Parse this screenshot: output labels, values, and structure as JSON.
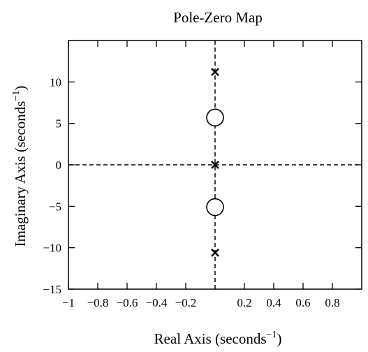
{
  "chart_data": {
    "type": "scatter",
    "title": "Pole-Zero Map",
    "xlabel": {
      "main": "Real Axis (seconds",
      "sup": "−1",
      "close": ")"
    },
    "ylabel": {
      "main": "Imaginary Axis (seconds",
      "sup": "−1",
      "close": ")"
    },
    "xlim": [
      -1,
      1
    ],
    "ylim": [
      -15,
      15
    ],
    "xticks": [
      {
        "value": -1,
        "label": "−1"
      },
      {
        "value": -0.8,
        "label": "−0.8"
      },
      {
        "value": -0.6,
        "label": "−0.6"
      },
      {
        "value": -0.4,
        "label": "−0.4"
      },
      {
        "value": -0.2,
        "label": "−0.2"
      },
      {
        "value": 0.2,
        "label": "0.2"
      },
      {
        "value": 0.4,
        "label": "0.4"
      },
      {
        "value": 0.6,
        "label": "0.6"
      },
      {
        "value": 0.8,
        "label": "0.8"
      }
    ],
    "yticks": [
      {
        "value": -15,
        "label": "−15"
      },
      {
        "value": -10,
        "label": "−10"
      },
      {
        "value": -5,
        "label": "−5"
      },
      {
        "value": 0,
        "label": "0"
      },
      {
        "value": 5,
        "label": "5"
      },
      {
        "value": 10,
        "label": "10"
      }
    ],
    "poles": [
      {
        "re": 0,
        "im": 11.2
      },
      {
        "re": 0,
        "im": 0
      },
      {
        "re": 0,
        "im": -10.6
      }
    ],
    "zeros": [
      {
        "re": 0,
        "im": 5.7
      },
      {
        "re": 0,
        "im": -5.1
      }
    ],
    "reference_lines": [
      "x=0",
      "y=0"
    ],
    "grid": false,
    "legend": false
  }
}
